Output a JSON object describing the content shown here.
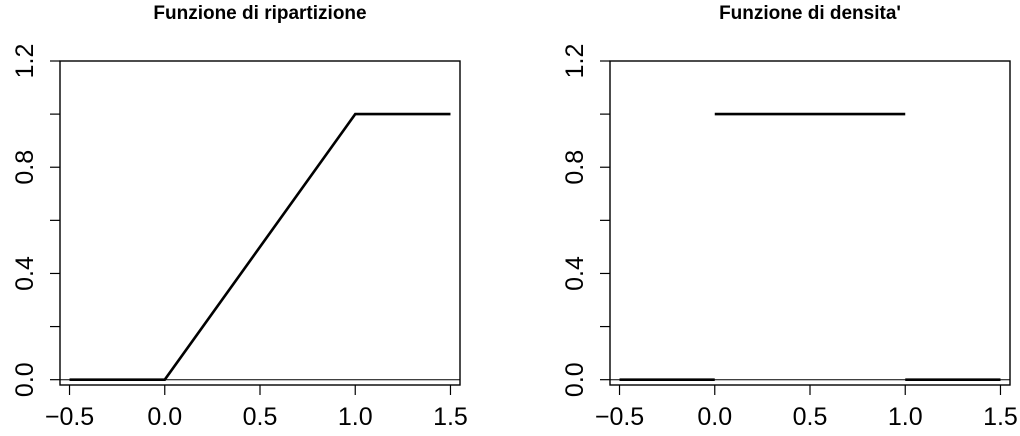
{
  "chart_data": [
    {
      "type": "line",
      "title": "Funzione di ripartizione",
      "xlabel": "",
      "ylabel": "",
      "xlim": [
        -0.55,
        1.55
      ],
      "ylim": [
        -0.02,
        1.2
      ],
      "x_ticks": [
        -0.5,
        0.0,
        0.5,
        1.0,
        1.5
      ],
      "x_tick_labels": [
        "−0.5",
        "0.0",
        "0.5",
        "1.0",
        "1.5"
      ],
      "y_ticks": [
        0.0,
        0.2,
        0.4,
        0.6,
        0.8,
        1.0,
        1.2
      ],
      "y_tick_labels": [
        "0.0",
        "",
        "0.4",
        "",
        "0.8",
        "",
        "1.2"
      ],
      "reference_line_y": 0,
      "series": [
        {
          "segments": [
            [
              [
                -0.5,
                0.0
              ],
              [
                0.0,
                0.0
              ],
              [
                1.0,
                1.0
              ],
              [
                1.5,
                1.0
              ]
            ]
          ]
        }
      ],
      "grid": false,
      "legend": "none",
      "color": "#000000"
    },
    {
      "type": "line",
      "title": "Funzione di densita'",
      "xlabel": "",
      "ylabel": "",
      "xlim": [
        -0.55,
        1.55
      ],
      "ylim": [
        -0.02,
        1.2
      ],
      "x_ticks": [
        -0.5,
        0.0,
        0.5,
        1.0,
        1.5
      ],
      "x_tick_labels": [
        "−0.5",
        "0.0",
        "0.5",
        "1.0",
        "1.5"
      ],
      "y_ticks": [
        0.0,
        0.2,
        0.4,
        0.6,
        0.8,
        1.0,
        1.2
      ],
      "y_tick_labels": [
        "0.0",
        "",
        "0.4",
        "",
        "0.8",
        "",
        "1.2"
      ],
      "reference_line_y": 0,
      "series": [
        {
          "segments": [
            [
              [
                -0.5,
                0.0
              ],
              [
                0.0,
                0.0
              ]
            ],
            [
              [
                0.0,
                1.0
              ],
              [
                1.0,
                1.0
              ]
            ],
            [
              [
                1.0,
                0.0
              ],
              [
                1.5,
                0.0
              ]
            ]
          ]
        }
      ],
      "grid": false,
      "legend": "none",
      "color": "#000000"
    }
  ]
}
